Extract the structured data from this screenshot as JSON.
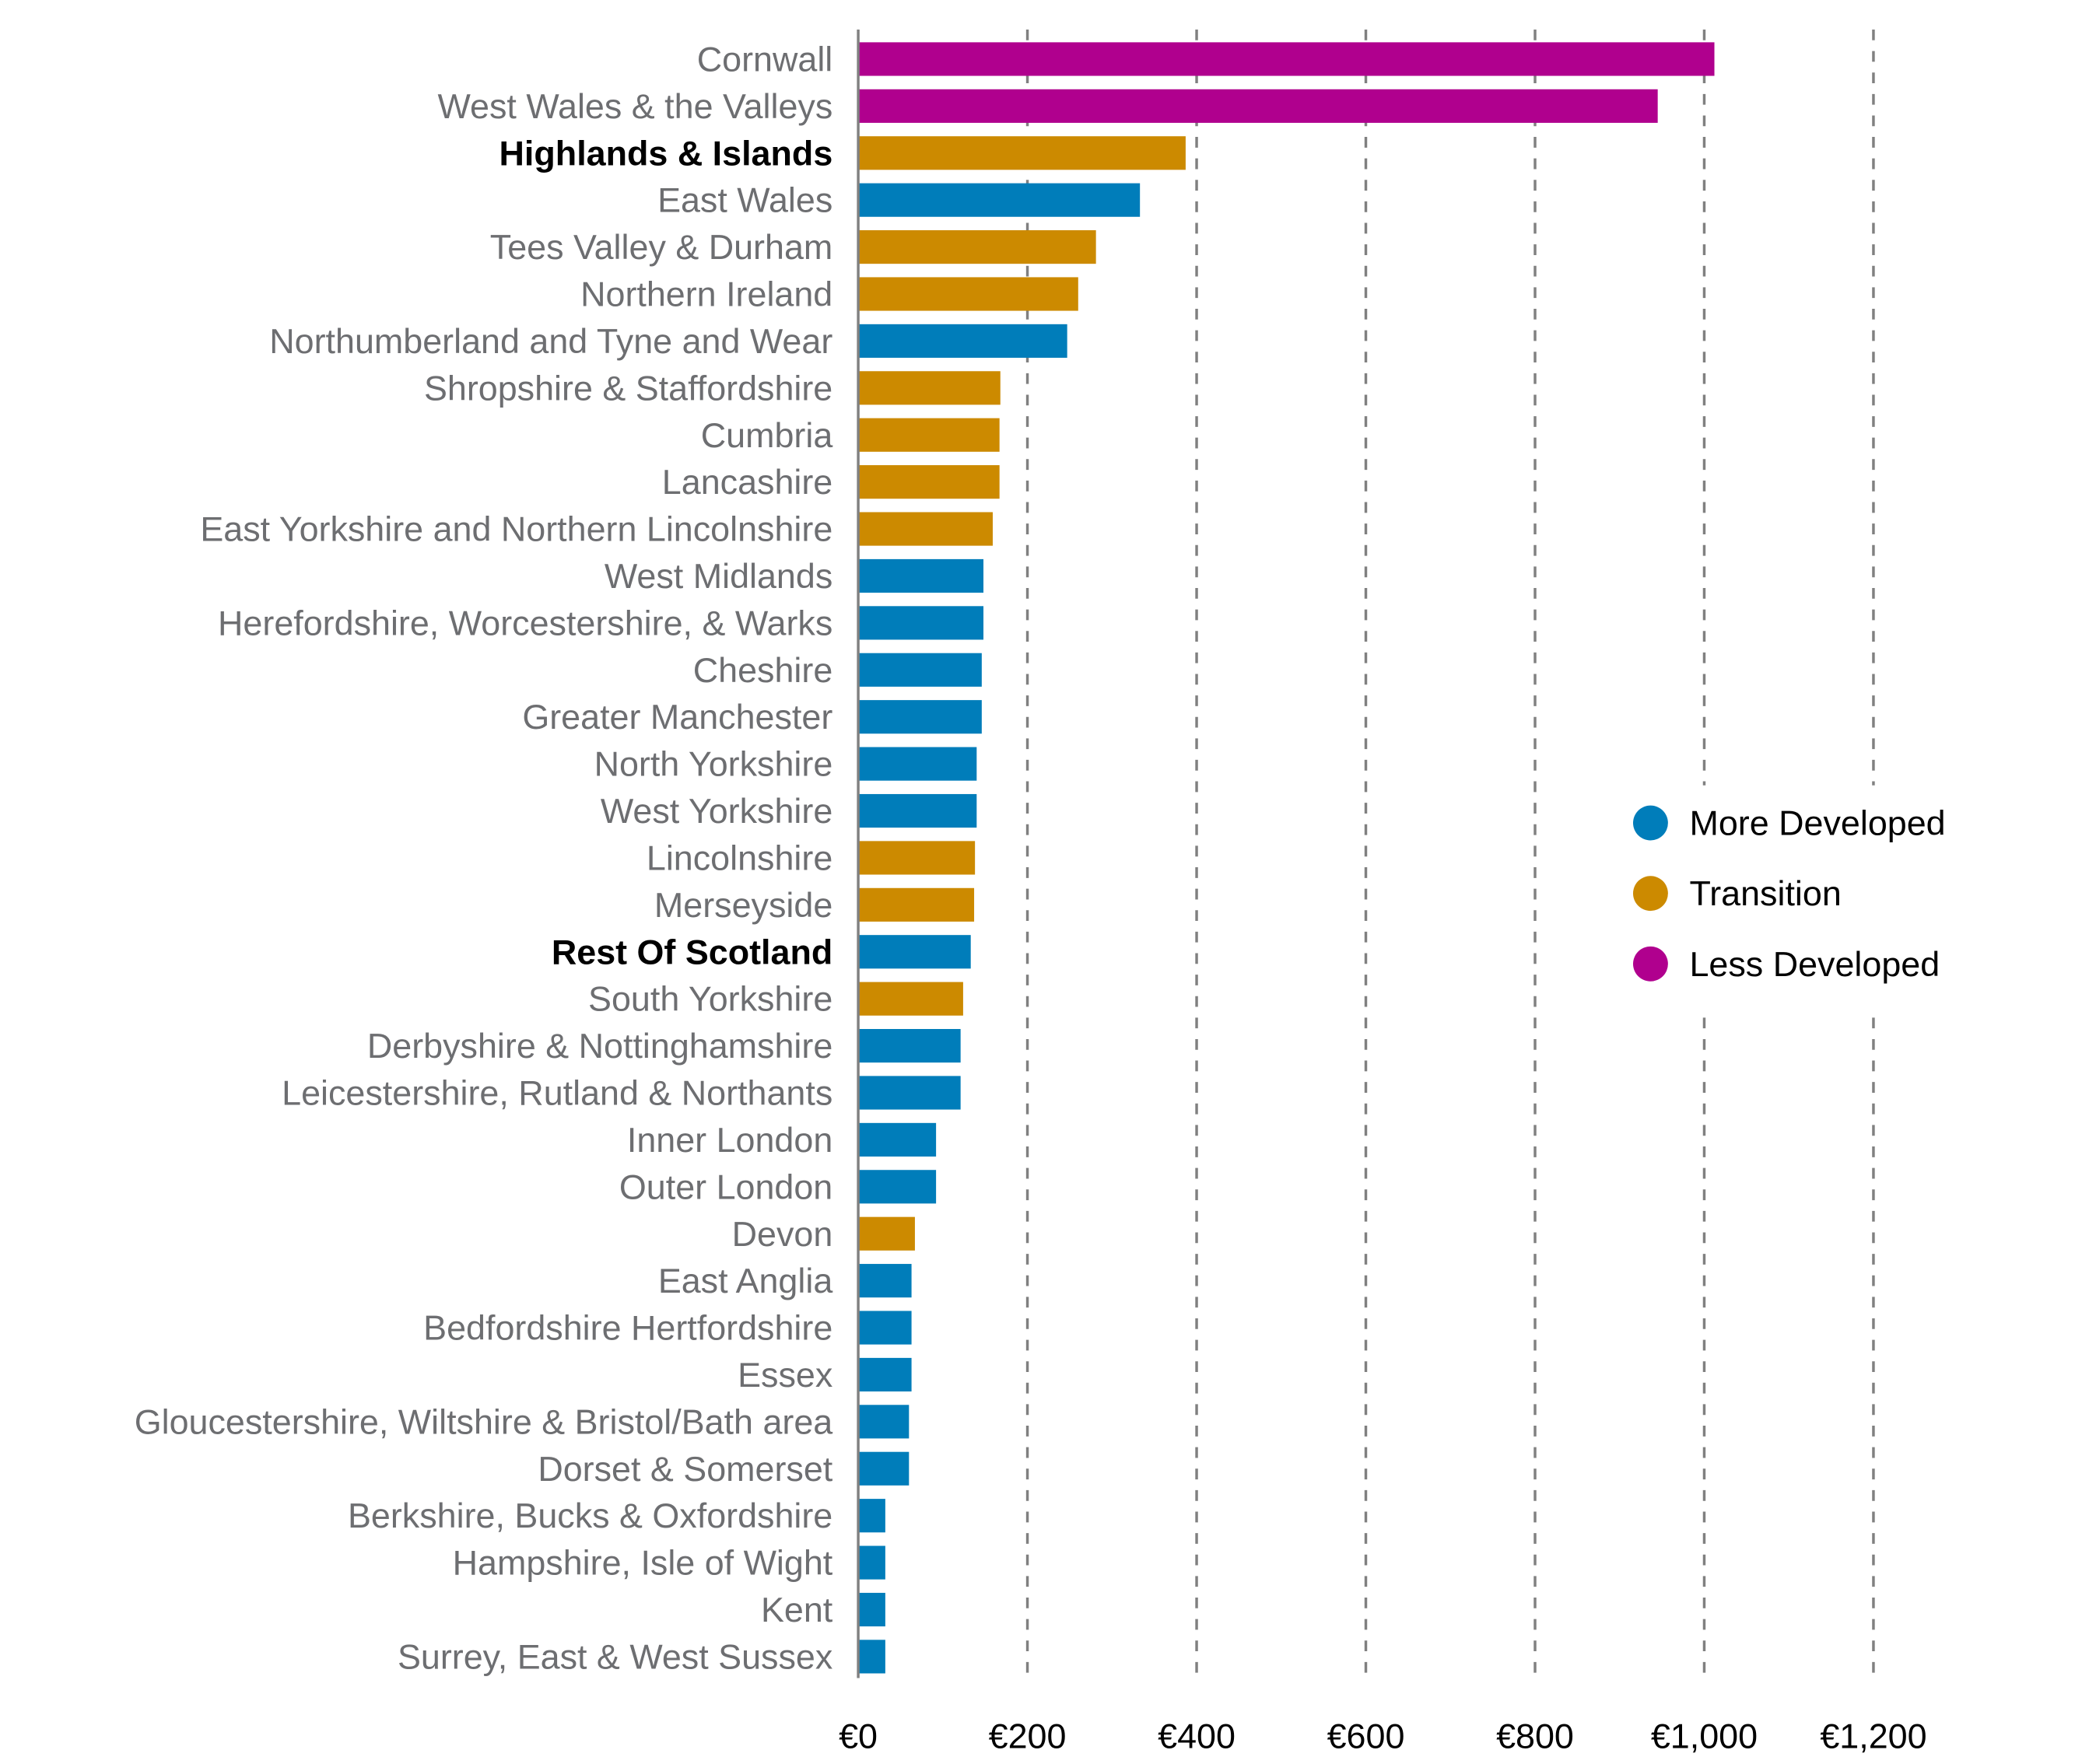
{
  "chart_data": {
    "type": "bar",
    "orientation": "horizontal",
    "title": "",
    "xlabel": "",
    "ylabel": "",
    "xlim": [
      0,
      1200
    ],
    "x_ticks": [
      0,
      200,
      400,
      600,
      800,
      1000,
      1200
    ],
    "x_tick_labels": [
      "€0",
      "€200",
      "€400",
      "€600",
      "€800",
      "€1,000",
      "€1,200"
    ],
    "grid": "vertical dashed",
    "legend_position": "right",
    "legend": [
      {
        "name": "More Developed",
        "color": "#007DBA"
      },
      {
        "name": "Transition",
        "color": "#CC8A00"
      },
      {
        "name": "Less Developed",
        "color": "#B0008E"
      }
    ],
    "bars": [
      {
        "label": "Cornwall",
        "value": 1012,
        "category": "Less Developed",
        "bold": false
      },
      {
        "label": "West Wales & the Valleys",
        "value": 945,
        "category": "Less Developed",
        "bold": false
      },
      {
        "label": "Highlands & Islands",
        "value": 387,
        "category": "Transition",
        "bold": true
      },
      {
        "label": "East Wales",
        "value": 333,
        "category": "More Developed",
        "bold": false
      },
      {
        "label": "Tees Valley & Durham",
        "value": 281,
        "category": "Transition",
        "bold": false
      },
      {
        "label": "Northern Ireland",
        "value": 260,
        "category": "Transition",
        "bold": false
      },
      {
        "label": "Northumberland and Tyne and Wear",
        "value": 247,
        "category": "More Developed",
        "bold": false
      },
      {
        "label": "Shropshire & Staffordshire",
        "value": 168,
        "category": "Transition",
        "bold": false
      },
      {
        "label": "Cumbria",
        "value": 167,
        "category": "Transition",
        "bold": false
      },
      {
        "label": "Lancashire",
        "value": 167,
        "category": "Transition",
        "bold": false
      },
      {
        "label": "East Yorkshire and Northern Lincolnshire",
        "value": 159,
        "category": "Transition",
        "bold": false
      },
      {
        "label": "West Midlands",
        "value": 148,
        "category": "More Developed",
        "bold": false
      },
      {
        "label": "Herefordshire, Worcestershire, & Warks",
        "value": 148,
        "category": "More Developed",
        "bold": false
      },
      {
        "label": "Cheshire",
        "value": 146,
        "category": "More Developed",
        "bold": false
      },
      {
        "label": "Greater Manchester",
        "value": 146,
        "category": "More Developed",
        "bold": false
      },
      {
        "label": "North Yorkshire",
        "value": 140,
        "category": "More Developed",
        "bold": false
      },
      {
        "label": "West Yorkshire",
        "value": 140,
        "category": "More Developed",
        "bold": false
      },
      {
        "label": "Lincolnshire",
        "value": 138,
        "category": "Transition",
        "bold": false
      },
      {
        "label": "Merseyside",
        "value": 137,
        "category": "Transition",
        "bold": false
      },
      {
        "label": "Rest Of Scotland",
        "value": 133,
        "category": "More Developed",
        "bold": true
      },
      {
        "label": "South Yorkshire",
        "value": 124,
        "category": "Transition",
        "bold": false
      },
      {
        "label": "Derbyshire & Nottinghamshire",
        "value": 121,
        "category": "More Developed",
        "bold": false
      },
      {
        "label": "Leicestershire, Rutland & Northants",
        "value": 121,
        "category": "More Developed",
        "bold": false
      },
      {
        "label": "Inner London",
        "value": 92,
        "category": "More Developed",
        "bold": false
      },
      {
        "label": "Outer London",
        "value": 92,
        "category": "More Developed",
        "bold": false
      },
      {
        "label": "Devon",
        "value": 67,
        "category": "Transition",
        "bold": false
      },
      {
        "label": "East Anglia",
        "value": 63,
        "category": "More Developed",
        "bold": false
      },
      {
        "label": "Bedfordshire Hertfordshire",
        "value": 63,
        "category": "More Developed",
        "bold": false
      },
      {
        "label": "Essex",
        "value": 63,
        "category": "More Developed",
        "bold": false
      },
      {
        "label": "Gloucestershire, Wiltshire & Bristol/Bath area",
        "value": 60,
        "category": "More Developed",
        "bold": false
      },
      {
        "label": "Dorset & Somerset",
        "value": 60,
        "category": "More Developed",
        "bold": false
      },
      {
        "label": "Berkshire, Bucks & Oxfordshire",
        "value": 32,
        "category": "More Developed",
        "bold": false
      },
      {
        "label": "Hampshire, Isle of Wight",
        "value": 32,
        "category": "More Developed",
        "bold": false
      },
      {
        "label": "Kent",
        "value": 32,
        "category": "More Developed",
        "bold": false
      },
      {
        "label": "Surrey, East & West Sussex",
        "value": 32,
        "category": "More Developed",
        "bold": false
      }
    ]
  }
}
